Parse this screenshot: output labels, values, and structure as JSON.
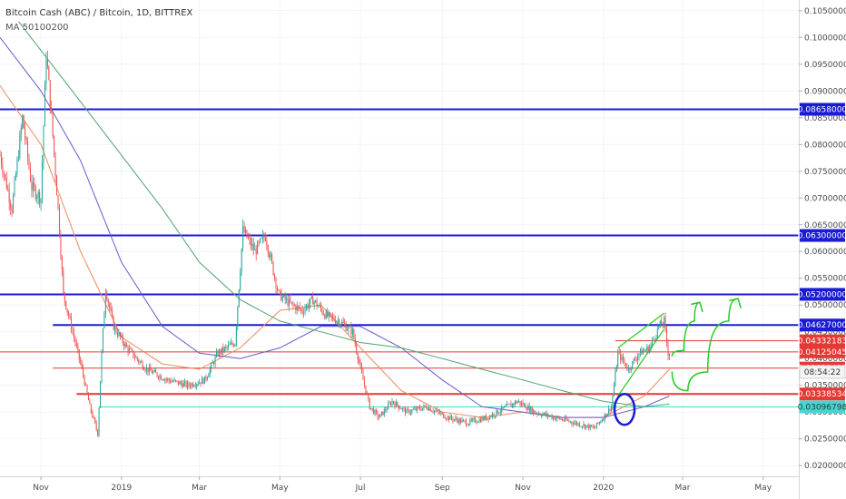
{
  "header": {
    "title": "Bitcoin Cash (ABC) / Bitcoin, 1D, BITTREX",
    "indicator": "MA 50100200"
  },
  "colors": {
    "candle_up": "#26a69a",
    "candle_down": "#ef5350",
    "support_blue": "#1b1bd6",
    "red_line": "#e53935",
    "cyan_line": "#40d8d0",
    "ma50": "#f08a5d",
    "ma100": "#6a5acd",
    "ma200": "#4fa36d",
    "sketch_green": "#22cc22",
    "circle_blue": "#1b1bd6"
  },
  "chart_data": {
    "type": "candlestick",
    "y_axis": {
      "min": 0.018,
      "max": 0.107,
      "ticks": [
        "0.10500000",
        "0.10000000",
        "0.09500000",
        "0.09000000",
        "0.08500000",
        "0.08000000",
        "0.07500000",
        "0.07000000",
        "0.06500000",
        "0.06000000",
        "0.05500000",
        "0.05000000",
        "0.04500000",
        "0.04000000",
        "0.03500000",
        "0.03000000",
        "0.02500000",
        "0.02000000"
      ],
      "tick_values": [
        0.105,
        0.1,
        0.095,
        0.09,
        0.085,
        0.08,
        0.075,
        0.07,
        0.065,
        0.06,
        0.055,
        0.05,
        0.045,
        0.04,
        0.035,
        0.03,
        0.025,
        0.02
      ]
    },
    "x_axis": {
      "labels": [
        "Nov",
        "2019",
        "Mar",
        "May",
        "Jul",
        "Sep",
        "Nov",
        "2020",
        "Mar",
        "May"
      ],
      "dates": [
        "2018-11-01",
        "2019-01-01",
        "2019-03-01",
        "2019-05-01",
        "2019-07-01",
        "2019-09-01",
        "2019-11-01",
        "2020-01-01",
        "2020-03-01",
        "2020-05-01"
      ],
      "range": [
        "2018-10-01",
        "2020-05-28"
      ]
    },
    "ohlc_points": [
      [
        "2018-10-01",
        0.078
      ],
      [
        "2018-10-10",
        0.068
      ],
      [
        "2018-10-18",
        0.085
      ],
      [
        "2018-10-25",
        0.072
      ],
      [
        "2018-11-01",
        0.07
      ],
      [
        "2018-11-05",
        0.097
      ],
      [
        "2018-11-09",
        0.085
      ],
      [
        "2018-11-14",
        0.068
      ],
      [
        "2018-11-18",
        0.052
      ],
      [
        "2018-11-25",
        0.045
      ],
      [
        "2018-12-02",
        0.038
      ],
      [
        "2018-12-08",
        0.031
      ],
      [
        "2018-12-14",
        0.026
      ],
      [
        "2018-12-17",
        0.041
      ],
      [
        "2018-12-20",
        0.053
      ],
      [
        "2018-12-26",
        0.046
      ],
      [
        "2019-01-05",
        0.042
      ],
      [
        "2019-01-20",
        0.038
      ],
      [
        "2019-02-05",
        0.036
      ],
      [
        "2019-02-20",
        0.035
      ],
      [
        "2019-03-05",
        0.036
      ],
      [
        "2019-03-15",
        0.041
      ],
      [
        "2019-03-28",
        0.043
      ],
      [
        "2019-04-03",
        0.064
      ],
      [
        "2019-04-12",
        0.06
      ],
      [
        "2019-04-20",
        0.063
      ],
      [
        "2019-04-30",
        0.052
      ],
      [
        "2019-05-10",
        0.05
      ],
      [
        "2019-05-18",
        0.049
      ],
      [
        "2019-05-26",
        0.051
      ],
      [
        "2019-06-05",
        0.048
      ],
      [
        "2019-06-15",
        0.047
      ],
      [
        "2019-06-25",
        0.045
      ],
      [
        "2019-07-02",
        0.037
      ],
      [
        "2019-07-08",
        0.031
      ],
      [
        "2019-07-15",
        0.029
      ],
      [
        "2019-07-25",
        0.032
      ],
      [
        "2019-08-05",
        0.03
      ],
      [
        "2019-08-20",
        0.031
      ],
      [
        "2019-09-05",
        0.029
      ],
      [
        "2019-09-20",
        0.028
      ],
      [
        "2019-10-05",
        0.029
      ],
      [
        "2019-10-20",
        0.031
      ],
      [
        "2019-10-28",
        0.032
      ],
      [
        "2019-11-10",
        0.03
      ],
      [
        "2019-11-25",
        0.029
      ],
      [
        "2019-12-10",
        0.028
      ],
      [
        "2019-12-25",
        0.027
      ],
      [
        "2020-01-01",
        0.029
      ],
      [
        "2020-01-07",
        0.031
      ],
      [
        "2020-01-12",
        0.041
      ],
      [
        "2020-01-20",
        0.038
      ],
      [
        "2020-01-28",
        0.041
      ],
      [
        "2020-02-05",
        0.042
      ],
      [
        "2020-02-12",
        0.046
      ],
      [
        "2020-02-16",
        0.047
      ],
      [
        "2020-02-19",
        0.041
      ],
      [
        "2020-02-20",
        0.04125
      ]
    ],
    "moving_averages": [
      {
        "period": 50,
        "color_key": "ma50",
        "points": [
          [
            "2018-10-01",
            0.091
          ],
          [
            "2018-11-01",
            0.08
          ],
          [
            "2018-12-01",
            0.06
          ],
          [
            "2019-01-01",
            0.044
          ],
          [
            "2019-02-01",
            0.039
          ],
          [
            "2019-03-01",
            0.038
          ],
          [
            "2019-04-01",
            0.042
          ],
          [
            "2019-05-01",
            0.049
          ],
          [
            "2019-06-01",
            0.05
          ],
          [
            "2019-07-01",
            0.042
          ],
          [
            "2019-08-01",
            0.034
          ],
          [
            "2019-09-01",
            0.03
          ],
          [
            "2019-10-01",
            0.029
          ],
          [
            "2019-11-01",
            0.03
          ],
          [
            "2019-12-01",
            0.029
          ],
          [
            "2020-01-01",
            0.029
          ],
          [
            "2020-02-01",
            0.033
          ],
          [
            "2020-02-20",
            0.038
          ]
        ]
      },
      {
        "period": 100,
        "color_key": "ma100",
        "points": [
          [
            "2018-10-01",
            0.1
          ],
          [
            "2018-11-01",
            0.09
          ],
          [
            "2018-12-01",
            0.077
          ],
          [
            "2019-01-01",
            0.058
          ],
          [
            "2019-02-01",
            0.046
          ],
          [
            "2019-03-01",
            0.041
          ],
          [
            "2019-04-01",
            0.04
          ],
          [
            "2019-05-01",
            0.042
          ],
          [
            "2019-06-01",
            0.046
          ],
          [
            "2019-07-01",
            0.046
          ],
          [
            "2019-08-01",
            0.042
          ],
          [
            "2019-09-01",
            0.036
          ],
          [
            "2019-10-01",
            0.031
          ],
          [
            "2019-11-01",
            0.03
          ],
          [
            "2019-12-01",
            0.029
          ],
          [
            "2020-01-01",
            0.029
          ],
          [
            "2020-02-01",
            0.031
          ],
          [
            "2020-02-20",
            0.033
          ]
        ]
      },
      {
        "period": 200,
        "color_key": "ma200",
        "points": [
          [
            "2018-10-15",
            0.103
          ],
          [
            "2018-12-01",
            0.088
          ],
          [
            "2019-01-01",
            0.078
          ],
          [
            "2019-02-01",
            0.068
          ],
          [
            "2019-03-01",
            0.058
          ],
          [
            "2019-04-01",
            0.051
          ],
          [
            "2019-05-01",
            0.047
          ],
          [
            "2019-06-01",
            0.045
          ],
          [
            "2019-07-01",
            0.043
          ],
          [
            "2019-08-01",
            0.042
          ],
          [
            "2019-09-01",
            0.04
          ],
          [
            "2019-10-01",
            0.038
          ],
          [
            "2019-11-01",
            0.036
          ],
          [
            "2019-12-01",
            0.034
          ],
          [
            "2020-01-01",
            0.032
          ],
          [
            "2020-02-01",
            0.031
          ],
          [
            "2020-02-20",
            0.0315
          ]
        ]
      }
    ],
    "horizontal_lines": [
      {
        "price": 0.08658,
        "label": "0.08658000",
        "color_key": "support_blue",
        "from": "2018-10-01",
        "width": 2
      },
      {
        "price": 0.063,
        "label": "0.06300000",
        "color_key": "support_blue",
        "from": "2018-10-01",
        "width": 2
      },
      {
        "price": 0.052,
        "label": "0.05200000",
        "color_key": "support_blue",
        "from": "2018-10-01",
        "width": 2
      },
      {
        "price": 0.04627,
        "label": "0.04627000",
        "color_key": "support_blue",
        "from": "2018-11-10",
        "width": 2
      },
      {
        "price": 0.04332183,
        "label": "0.04332183",
        "color_key": "red_line",
        "from": "2020-01-10",
        "width": 1
      },
      {
        "price": 0.04125045,
        "label": "0.04125045",
        "color_key": "red_line",
        "from": "2018-10-01",
        "width": 1
      },
      {
        "price": 0.03822427,
        "label": "0.03822427",
        "color_key": "red_line",
        "from": "2018-11-10",
        "width": 1
      },
      {
        "price": 0.03338534,
        "label": "0.03338534",
        "color_key": "red_line",
        "from": "2018-11-28",
        "width": 2
      },
      {
        "price": 0.03096798,
        "label": "0.03096798",
        "color_key": "cyan_line",
        "from": "2018-12-15",
        "width": 1
      }
    ],
    "countdown": {
      "label": "08:54:22",
      "price": 0.0375
    },
    "annotations": {
      "channel": [
        [
          "2020-01-12",
          0.042
        ],
        [
          "2020-02-16",
          0.0485
        ],
        [
          "2020-01-12",
          0.033
        ],
        [
          "2020-02-16",
          0.0455
        ]
      ],
      "circle": {
        "date": "2020-01-17",
        "price": 0.0305
      },
      "arrows": [
        {
          "points": [
            [
              "2020-02-22",
              0.0405
            ],
            [
              "2020-03-02",
              0.0415
            ],
            [
              "2020-03-10",
              0.047
            ],
            [
              "2020-03-14",
              0.0505
            ]
          ]
        },
        {
          "points": [
            [
              "2020-02-22",
              0.0375
            ],
            [
              "2020-03-05",
              0.034
            ],
            [
              "2020-03-20",
              0.0375
            ],
            [
              "2020-04-05",
              0.047
            ],
            [
              "2020-04-12",
              0.0512
            ]
          ]
        }
      ]
    }
  }
}
